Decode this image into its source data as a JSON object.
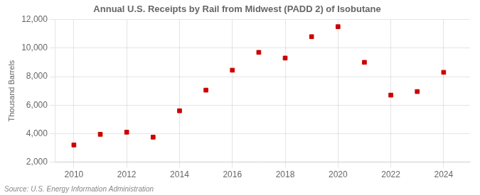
{
  "chart_data": {
    "type": "scatter",
    "title": "Annual U.S. Receipts by Rail from Midwest (PADD 2) of Isobutane",
    "ylabel": "Thousand Barrels",
    "annotations": [
      "Source: U.S. Energy Information Administration"
    ],
    "x": [
      2010,
      2011,
      2012,
      2013,
      2014,
      2015,
      2016,
      2017,
      2018,
      2019,
      2020,
      2021,
      2022,
      2023,
      2024
    ],
    "values": [
      3200,
      3950,
      4100,
      3750,
      5600,
      7050,
      8450,
      9700,
      9300,
      10800,
      11500,
      9000,
      6700,
      6950,
      8300
    ],
    "color": "#cc0000",
    "marker": "square",
    "xlim": [
      2009.3,
      2025.0
    ],
    "xticks": [
      2010,
      2012,
      2014,
      2016,
      2018,
      2020,
      2022,
      2024
    ],
    "ylim": [
      2000,
      12000
    ],
    "yticks": [
      {
        "value": 2000,
        "label": "2,000"
      },
      {
        "value": 4000,
        "label": "4,000"
      },
      {
        "value": 6000,
        "label": "6,000"
      },
      {
        "value": 8000,
        "label": "8,000"
      },
      {
        "value": 10000,
        "label": "10,000"
      },
      {
        "value": 12000,
        "label": "12,000"
      }
    ],
    "grid": true
  }
}
